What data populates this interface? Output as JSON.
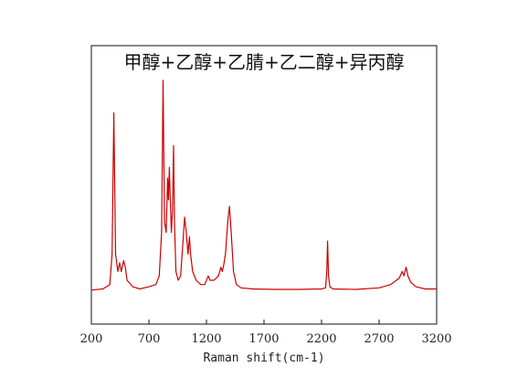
{
  "chart_data": {
    "type": "line",
    "title": "甲醇+乙醇+乙腈+乙二醇+异丙醇",
    "xlabel": "Raman shift(cm-1)",
    "ylabel": "",
    "xlim": [
      200,
      3200
    ],
    "ylim": [
      0,
      1
    ],
    "x_ticks": [
      200,
      700,
      1200,
      1700,
      2200,
      2700,
      3200
    ],
    "x_tick_labels": [
      "200",
      "700",
      "1200",
      "1700",
      "2200",
      "2700",
      "3200"
    ],
    "grid": false,
    "legend": "none",
    "line_color": "#cc0000",
    "series": [
      {
        "points": [
          [
            200,
            0.035
          ],
          [
            300,
            0.04
          ],
          [
            360,
            0.06
          ],
          [
            380,
            0.2
          ],
          [
            395,
            0.85
          ],
          [
            410,
            0.2
          ],
          [
            430,
            0.12
          ],
          [
            445,
            0.16
          ],
          [
            460,
            0.12
          ],
          [
            480,
            0.17
          ],
          [
            495,
            0.14
          ],
          [
            510,
            0.08
          ],
          [
            560,
            0.05
          ],
          [
            620,
            0.04
          ],
          [
            700,
            0.05
          ],
          [
            760,
            0.06
          ],
          [
            790,
            0.1
          ],
          [
            810,
            0.3
          ],
          [
            823,
            1.0
          ],
          [
            836,
            0.35
          ],
          [
            850,
            0.3
          ],
          [
            863,
            0.55
          ],
          [
            870,
            0.45
          ],
          [
            878,
            0.6
          ],
          [
            886,
            0.45
          ],
          [
            895,
            0.3
          ],
          [
            905,
            0.4
          ],
          [
            914,
            0.7
          ],
          [
            922,
            0.35
          ],
          [
            935,
            0.12
          ],
          [
            955,
            0.08
          ],
          [
            975,
            0.1
          ],
          [
            995,
            0.25
          ],
          [
            1010,
            0.37
          ],
          [
            1025,
            0.3
          ],
          [
            1040,
            0.2
          ],
          [
            1052,
            0.28
          ],
          [
            1062,
            0.2
          ],
          [
            1080,
            0.12
          ],
          [
            1110,
            0.08
          ],
          [
            1150,
            0.06
          ],
          [
            1185,
            0.06
          ],
          [
            1215,
            0.1
          ],
          [
            1232,
            0.08
          ],
          [
            1265,
            0.08
          ],
          [
            1305,
            0.1
          ],
          [
            1325,
            0.14
          ],
          [
            1338,
            0.12
          ],
          [
            1350,
            0.15
          ],
          [
            1365,
            0.2
          ],
          [
            1385,
            0.35
          ],
          [
            1400,
            0.42
          ],
          [
            1415,
            0.3
          ],
          [
            1435,
            0.12
          ],
          [
            1460,
            0.06
          ],
          [
            1500,
            0.045
          ],
          [
            1600,
            0.04
          ],
          [
            1800,
            0.038
          ],
          [
            2000,
            0.038
          ],
          [
            2200,
            0.04
          ],
          [
            2235,
            0.045
          ],
          [
            2245,
            0.12
          ],
          [
            2252,
            0.26
          ],
          [
            2260,
            0.1
          ],
          [
            2272,
            0.05
          ],
          [
            2300,
            0.04
          ],
          [
            2500,
            0.038
          ],
          [
            2700,
            0.045
          ],
          [
            2800,
            0.06
          ],
          [
            2850,
            0.08
          ],
          [
            2875,
            0.09
          ],
          [
            2900,
            0.12
          ],
          [
            2915,
            0.1
          ],
          [
            2935,
            0.14
          ],
          [
            2950,
            0.1
          ],
          [
            2975,
            0.07
          ],
          [
            3020,
            0.05
          ],
          [
            3100,
            0.04
          ],
          [
            3200,
            0.04
          ]
        ]
      }
    ]
  }
}
